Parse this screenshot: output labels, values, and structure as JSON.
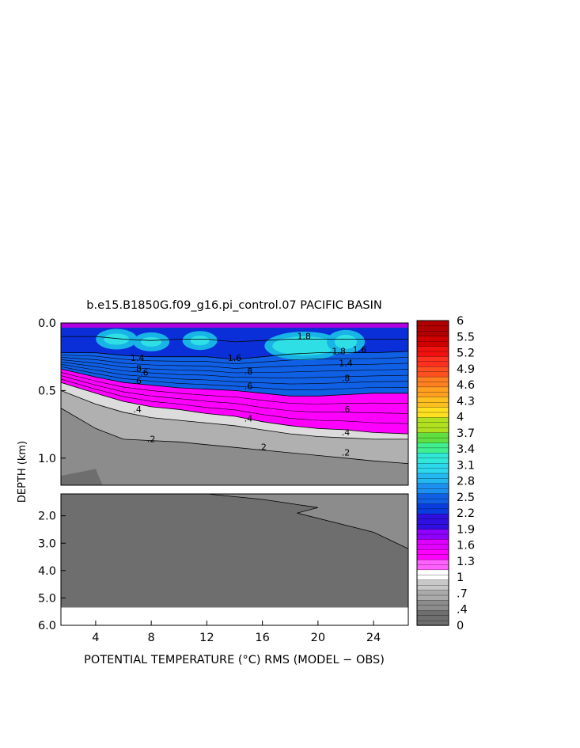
{
  "chart_data": {
    "type": "heatmap",
    "title": "b.e15.B1850G.f09_g16.pi_control.07 PACIFIC BASIN",
    "xlabel": "POTENTIAL TEMPERATURE (°C) RMS (MODEL − OBS)",
    "ylabel": "DEPTH (km)",
    "x_ticks": [
      "4",
      "8",
      "12",
      "16",
      "20",
      "24"
    ],
    "xlim": [
      1.5,
      26.5
    ],
    "upper_panel": {
      "ylim": [
        0.0,
        1.2
      ],
      "y_ticks": [
        "0.0",
        "0.5",
        "1.0"
      ]
    },
    "lower_panel": {
      "ylim": [
        1.2,
        6.0
      ],
      "y_ticks": [
        "2.0",
        "3.0",
        "4.0",
        "5.0",
        "6.0"
      ]
    },
    "colorbar": {
      "range": [
        0,
        6
      ],
      "labels": [
        "6",
        "5.5",
        "5.2",
        "4.9",
        "4.6",
        "4.3",
        "4",
        "3.7",
        "3.4",
        "3.1",
        "2.8",
        "2.5",
        "2.2",
        "1.9",
        "1.6",
        "1.3",
        "1",
        ".7",
        ".4",
        "0"
      ]
    },
    "contour_labels": [
      ".2",
      ".2",
      ".2",
      ".4",
      ".4",
      ".4",
      ".6",
      ".6",
      ".6",
      ".6",
      ".8",
      ".8",
      ".8",
      "1.4",
      "1.4",
      "1.8",
      "1.8",
      "1.6",
      "1.6"
    ],
    "series": [
      {
        "name": "",
        "x": [
          1.5,
          4,
          6,
          8,
          10,
          12,
          14,
          16,
          18,
          20,
          22,
          24,
          26.5
        ],
        "y": [
          0.1,
          0.1,
          0.12,
          0.13,
          0.12,
          0.12,
          0.14,
          0.13,
          0.12,
          0.12,
          0.12,
          0.12,
          0.12
        ]
      },
      {
        "name": "",
        "x": [
          1.5,
          4,
          6,
          8,
          10,
          12,
          14,
          16,
          18,
          20,
          22,
          24,
          26.5
        ],
        "y": [
          0.22,
          0.22,
          0.24,
          0.25,
          0.25,
          0.25,
          0.27,
          0.25,
          0.23,
          0.22,
          0.22,
          0.22,
          0.21
        ]
      },
      {
        "name": "",
        "x": [
          1.5,
          4,
          6,
          8,
          10,
          12,
          14,
          16,
          18,
          20,
          22,
          24,
          26.5
        ],
        "y": [
          0.34,
          0.4,
          0.44,
          0.46,
          0.48,
          0.49,
          0.5,
          0.52,
          0.54,
          0.54,
          0.53,
          0.52,
          0.52
        ]
      },
      {
        "name": "",
        "x": [
          1.5,
          4,
          6,
          8,
          10,
          12,
          14,
          16,
          18,
          20,
          22,
          24,
          26.5
        ],
        "y": [
          0.44,
          0.52,
          0.58,
          0.62,
          0.64,
          0.67,
          0.69,
          0.73,
          0.76,
          0.78,
          0.79,
          0.81,
          0.82
        ]
      },
      {
        "name": "",
        "x": [
          1.5,
          4,
          6,
          8,
          10,
          12,
          14,
          16,
          18,
          20,
          22,
          24,
          26.5
        ],
        "y": [
          0.5,
          0.6,
          0.66,
          0.7,
          0.72,
          0.74,
          0.76,
          0.79,
          0.82,
          0.84,
          0.85,
          0.86,
          0.86
        ]
      },
      {
        "name": "",
        "x": [
          1.5,
          4,
          6,
          8,
          10,
          12,
          14,
          16,
          18,
          20,
          22,
          24,
          26.5
        ],
        "y": [
          0.63,
          0.78,
          0.86,
          0.87,
          0.88,
          0.9,
          0.92,
          0.94,
          0.96,
          0.98,
          1.0,
          1.02,
          1.04
        ]
      }
    ],
    "lower_panel_boundary": {
      "x": [
        4,
        12,
        16,
        20,
        18.5,
        24,
        26.5
      ],
      "y": [
        1.2,
        1.2,
        1.4,
        1.7,
        1.9,
        2.6,
        3.2
      ]
    },
    "grid": false,
    "legend": "right"
  }
}
